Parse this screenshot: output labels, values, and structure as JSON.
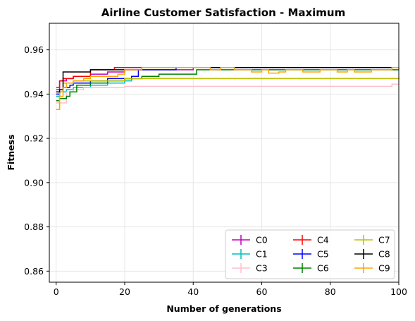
{
  "chart_data": {
    "type": "line",
    "title": "Airline Customer Satisfaction - Maximum",
    "xlabel": "Number of generations",
    "ylabel": "Fitness",
    "xlim": [
      -2,
      100
    ],
    "ylim": [
      0.855,
      0.972
    ],
    "xticks": [
      0,
      20,
      40,
      60,
      80,
      100
    ],
    "yticks": [
      0.86,
      0.88,
      0.9,
      0.92,
      0.94,
      0.96
    ],
    "ytick_labels": [
      "0.86",
      "0.88",
      "0.90",
      "0.92",
      "0.94",
      "0.96"
    ],
    "grid": true,
    "legend_placement": "lower-right",
    "legend_columns": 3,
    "series": [
      {
        "name": "C0",
        "color": "#bf00bf",
        "points": [
          [
            0,
            0.942
          ],
          [
            1,
            0.946
          ],
          [
            3,
            0.947
          ],
          [
            5,
            0.948
          ],
          [
            10,
            0.949
          ],
          [
            15,
            0.95
          ],
          [
            20,
            0.951
          ],
          [
            30,
            0.951
          ],
          [
            40,
            0.952
          ],
          [
            100,
            0.952
          ]
        ]
      },
      {
        "name": "C1",
        "color": "#00bfbf",
        "points": [
          [
            0,
            0.939
          ],
          [
            1,
            0.941
          ],
          [
            3,
            0.942
          ],
          [
            5,
            0.943
          ],
          [
            10,
            0.944
          ],
          [
            15,
            0.945
          ],
          [
            20,
            0.946
          ],
          [
            22,
            0.947
          ],
          [
            100,
            0.947
          ]
        ]
      },
      {
        "name": "C3",
        "color": "#ffc0cb",
        "points": [
          [
            0,
            0.936
          ],
          [
            2,
            0.936
          ],
          [
            3,
            0.941
          ],
          [
            5,
            0.942
          ],
          [
            8,
            0.943
          ],
          [
            15,
            0.943
          ],
          [
            20,
            0.9435
          ],
          [
            97,
            0.9435
          ],
          [
            98,
            0.9445
          ],
          [
            100,
            0.9445
          ]
        ]
      },
      {
        "name": "C4",
        "color": "#ff0000",
        "points": [
          [
            0,
            0.943
          ],
          [
            1,
            0.946
          ],
          [
            2,
            0.947
          ],
          [
            5,
            0.948
          ],
          [
            10,
            0.951
          ],
          [
            17,
            0.952
          ],
          [
            100,
            0.952
          ]
        ]
      },
      {
        "name": "C5",
        "color": "#0000ff",
        "points": [
          [
            0,
            0.94
          ],
          [
            1,
            0.941
          ],
          [
            2,
            0.943
          ],
          [
            4,
            0.944
          ],
          [
            5,
            0.945
          ],
          [
            10,
            0.946
          ],
          [
            15,
            0.947
          ],
          [
            20,
            0.947
          ],
          [
            22,
            0.948
          ],
          [
            24,
            0.951
          ],
          [
            30,
            0.951
          ],
          [
            35,
            0.952
          ],
          [
            100,
            0.952
          ]
        ]
      },
      {
        "name": "C6",
        "color": "#008000",
        "points": [
          [
            0,
            0.937
          ],
          [
            1,
            0.938
          ],
          [
            3,
            0.939
          ],
          [
            4,
            0.941
          ],
          [
            6,
            0.944
          ],
          [
            10,
            0.945
          ],
          [
            15,
            0.946
          ],
          [
            20,
            0.947
          ],
          [
            25,
            0.948
          ],
          [
            30,
            0.949
          ],
          [
            40,
            0.949
          ],
          [
            41,
            0.951
          ],
          [
            100,
            0.951
          ]
        ]
      },
      {
        "name": "C7",
        "color": "#bfbf00",
        "points": [
          [
            0,
            0.933
          ],
          [
            1,
            0.941
          ],
          [
            2,
            0.945
          ],
          [
            5,
            0.946
          ],
          [
            10,
            0.946
          ],
          [
            20,
            0.947
          ],
          [
            100,
            0.9475
          ]
        ]
      },
      {
        "name": "C8",
        "color": "#000000",
        "points": [
          [
            0,
            0.941
          ],
          [
            1,
            0.942
          ],
          [
            2,
            0.95
          ],
          [
            10,
            0.951
          ],
          [
            20,
            0.951
          ],
          [
            25,
            0.952
          ],
          [
            100,
            0.952
          ]
        ]
      },
      {
        "name": "C9",
        "color": "#ffa500",
        "points": [
          [
            0,
            0.933
          ],
          [
            1,
            0.939
          ],
          [
            2,
            0.943
          ],
          [
            3,
            0.945
          ],
          [
            5,
            0.946
          ],
          [
            8,
            0.947
          ],
          [
            10,
            0.948
          ],
          [
            15,
            0.948
          ],
          [
            18,
            0.949
          ],
          [
            20,
            0.951
          ],
          [
            25,
            0.952
          ],
          [
            30,
            0.952
          ],
          [
            40,
            0.952
          ],
          [
            45,
            0.951
          ],
          [
            48,
            0.952
          ],
          [
            52,
            0.951
          ],
          [
            55,
            0.951
          ],
          [
            57,
            0.95
          ],
          [
            60,
            0.951
          ],
          [
            62,
            0.9495
          ],
          [
            65,
            0.95
          ],
          [
            67,
            0.951
          ],
          [
            70,
            0.951
          ],
          [
            72,
            0.95
          ],
          [
            75,
            0.95
          ],
          [
            77,
            0.951
          ],
          [
            80,
            0.951
          ],
          [
            82,
            0.95
          ],
          [
            85,
            0.951
          ],
          [
            87,
            0.95
          ],
          [
            90,
            0.95
          ],
          [
            92,
            0.951
          ],
          [
            95,
            0.951
          ],
          [
            98,
            0.952
          ],
          [
            100,
            0.951
          ]
        ]
      }
    ]
  }
}
